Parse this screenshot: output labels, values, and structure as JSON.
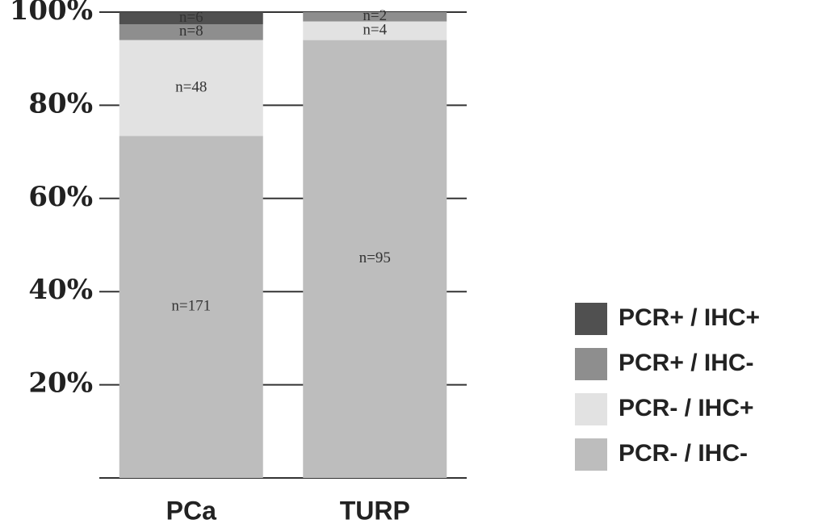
{
  "chart_data": {
    "type": "stacked-bar",
    "categories": [
      "PCa",
      "TURP"
    ],
    "series": [
      {
        "name": "PCR- / IHC-",
        "color": "#bdbdbd",
        "values": [
          73.4,
          94.0
        ],
        "annotations": [
          "n=171",
          "n=95"
        ]
      },
      {
        "name": "PCR- / IHC+",
        "color": "#e2e2e2",
        "values": [
          20.6,
          4.0
        ],
        "annotations": [
          "n=48",
          "n=4"
        ]
      },
      {
        "name": "PCR+ / IHC-",
        "color": "#8e8e8e",
        "values": [
          3.4,
          2.0
        ],
        "annotations": [
          "n=8",
          "n=2"
        ]
      },
      {
        "name": "PCR+ / IHC+",
        "color": "#505050",
        "values": [
          2.6,
          0
        ],
        "annotations": [
          "n=6",
          null
        ]
      }
    ],
    "ylim": [
      0,
      100
    ],
    "yticks": [
      {
        "value": 20,
        "label": "20%"
      },
      {
        "value": 40,
        "label": "40%"
      },
      {
        "value": 60,
        "label": "60%"
      },
      {
        "value": 80,
        "label": "80%"
      },
      {
        "value": 100,
        "label": "100%"
      }
    ],
    "grid": true,
    "legend": "right"
  }
}
